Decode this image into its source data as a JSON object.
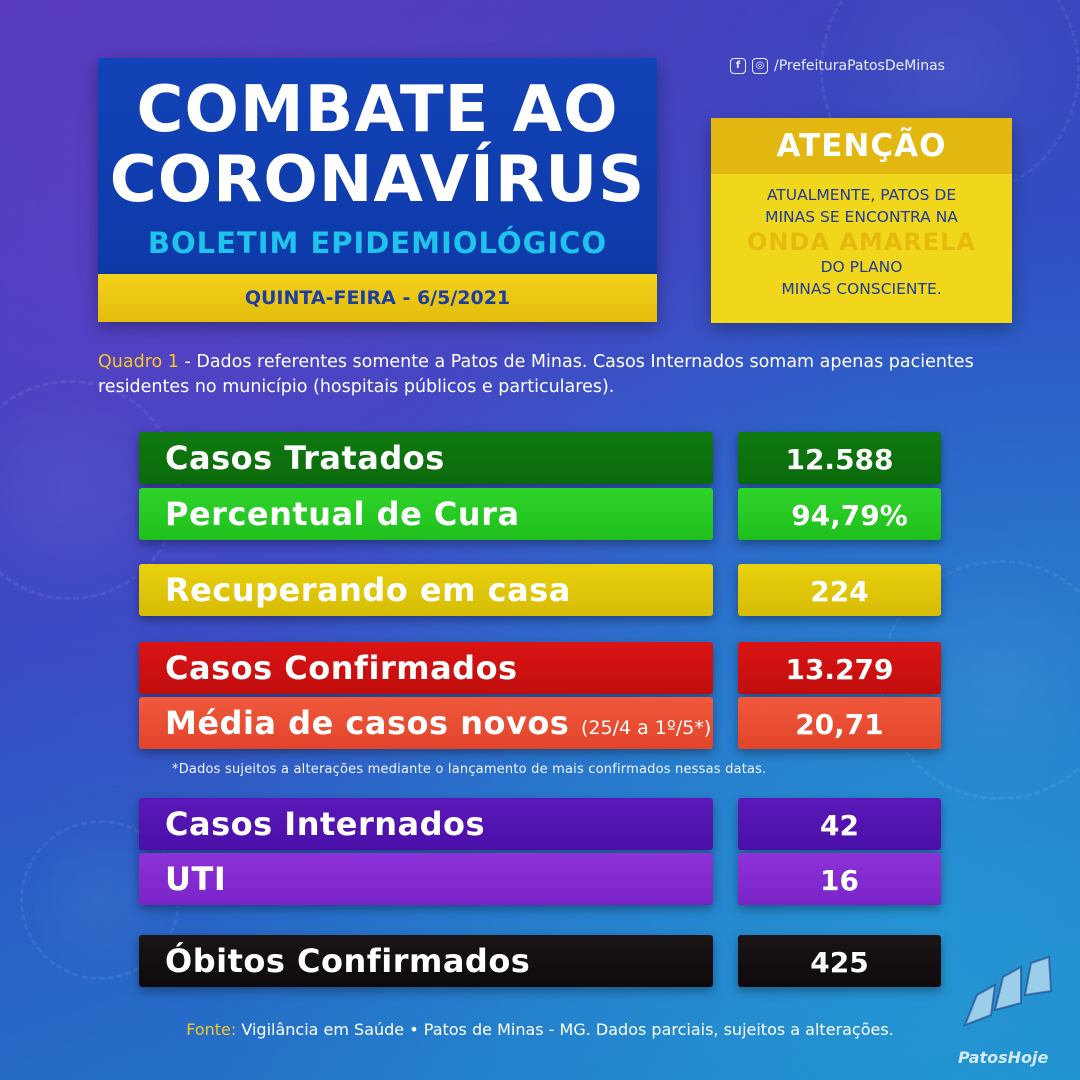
{
  "header": {
    "title_line1": "COMBATE AO",
    "title_line2": "CORONAVÍRUS",
    "subtitle": "BOLETIM EPIDEMIOLÓGICO",
    "date": "QUINTA-FEIRA - 6/5/2021"
  },
  "social": {
    "icons": [
      "facebook-icon",
      "instagram-icon"
    ],
    "handle": "/PrefeituraPatosDeMinas"
  },
  "attention": {
    "heading": "ATENÇÃO",
    "line1": "ATUALMENTE, PATOS DE",
    "line2": "MINAS SE ENCONTRA NA",
    "highlight": "ONDA AMARELA",
    "line3": "DO PLANO",
    "line4": "MINAS CONSCIENTE."
  },
  "note": {
    "lead": "Quadro 1",
    "text": " - Dados referentes somente a Patos de Minas. Casos Internados somam apenas pacientes residentes no município (hospitais públicos e particulares)."
  },
  "stats": {
    "casos_tratados": {
      "label": "Casos Tratados",
      "value": "12.588"
    },
    "percentual_cura": {
      "label": "Percentual de Cura",
      "value": "94,79%"
    },
    "recuperando": {
      "label": "Recuperando em casa",
      "value": "224"
    },
    "confirmados": {
      "label": "Casos Confirmados",
      "value": "13.279"
    },
    "media_novos": {
      "label": "Média de casos novos",
      "period": "(25/4 a 1º/5*)",
      "value": "20,71"
    },
    "internados": {
      "label": "Casos Internados",
      "value": "42"
    },
    "uti": {
      "label": "UTI",
      "value": "16"
    },
    "obitos": {
      "label": "Óbitos Confirmados",
      "value": "425"
    }
  },
  "footnote": "*Dados sujeitos a alterações mediante o lançamento de mais confirmados nessas datas.",
  "source": {
    "lead": "Fonte:",
    "text": " Vigilância em Saúde • Patos de Minas - MG. Dados parciais, sujeitos a alterações."
  },
  "brand": {
    "name": "PatosHoje"
  },
  "colors": {
    "green_dark": "#0a6a0a",
    "green_light": "#1fbf1c",
    "yellow": "#d7bc06",
    "red": "#c10e0e",
    "orange_red": "#e2442a",
    "purple_dark": "#4a10a8",
    "purple_light": "#7a24c8",
    "black": "#0e0a0c",
    "title_blue": "#0d3aa8",
    "accent_cyan": "#1fc4ec",
    "accent_yellow": "#f5c623"
  }
}
